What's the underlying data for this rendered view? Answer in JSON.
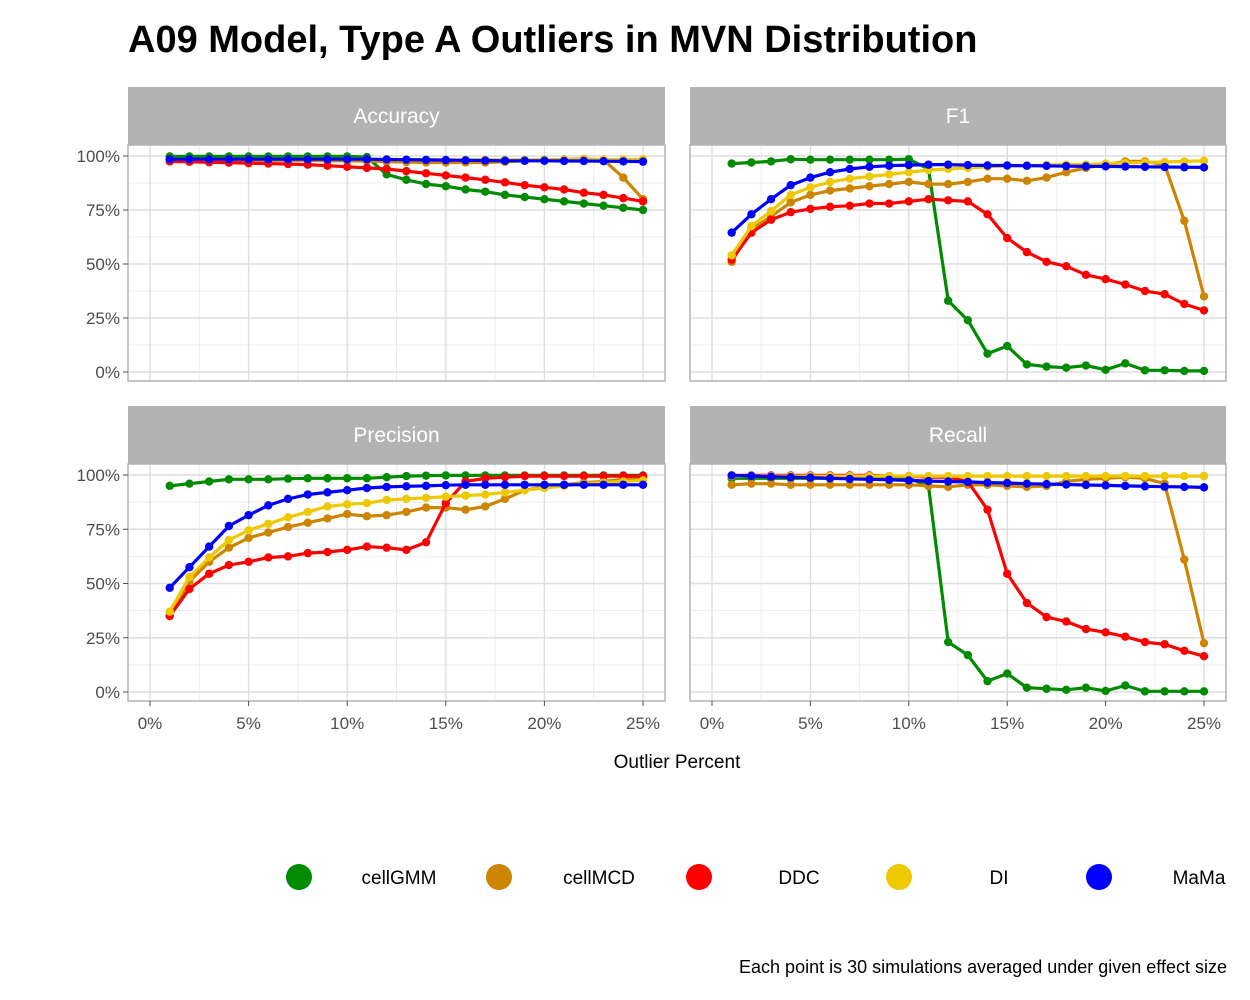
{
  "chart_data": {
    "type": "line",
    "title": "A09 Model, Type A Outliers in MVN Distribution",
    "xlabel": "Outlier Percent",
    "ylabel": "",
    "caption": "Each point is 30 simulations averaged under given effect size",
    "xlim": [
      0,
      25
    ],
    "ylim": [
      0,
      100
    ],
    "x_ticks": [
      "0%",
      "5%",
      "10%",
      "15%",
      "20%",
      "25%"
    ],
    "y_ticks": [
      "0%",
      "25%",
      "50%",
      "75%",
      "100%"
    ],
    "x": [
      1,
      2,
      3,
      4,
      5,
      6,
      7,
      8,
      9,
      10,
      11,
      12,
      13,
      14,
      15,
      16,
      17,
      18,
      19,
      20,
      21,
      22,
      23,
      24,
      25
    ],
    "legend": [
      {
        "name": "cellGMM",
        "color": "#008B00"
      },
      {
        "name": "cellMCD",
        "color": "#CD8500"
      },
      {
        "name": "DDC",
        "color": "#FF0000"
      },
      {
        "name": "DI",
        "color": "#EEC900"
      },
      {
        "name": "MaMa",
        "color": "#0000FF"
      }
    ],
    "panels": [
      {
        "label": "Accuracy",
        "series": [
          {
            "name": "cellGMM",
            "values": [
              99.8,
              99.8,
              99.8,
              99.8,
              99.8,
              99.8,
              99.8,
              99.8,
              99.8,
              99.8,
              99.5,
              91.5,
              89,
              87,
              86,
              84.5,
              83.5,
              82,
              81,
              80,
              79,
              78,
              77,
              76,
              75
            ]
          },
          {
            "name": "cellMCD",
            "values": [
              98,
              98,
              98,
              98,
              98,
              98,
              98,
              98,
              97.8,
              97.8,
              97.6,
              97.4,
              97.2,
              97,
              97,
              97,
              97,
              97.3,
              97.8,
              98.2,
              98.4,
              98.6,
              98.2,
              90,
              80
            ]
          },
          {
            "name": "DDC",
            "values": [
              97.5,
              97.3,
              97.1,
              96.9,
              96.7,
              96.5,
              96.3,
              96,
              95.5,
              95,
              94.5,
              94,
              93,
              92,
              91,
              90,
              89,
              87.8,
              86.5,
              85.5,
              84.5,
              83,
              82,
              80.5,
              79
            ]
          },
          {
            "name": "DI",
            "values": [
              98.5,
              98.5,
              98.5,
              98.5,
              98.5,
              98.5,
              98.5,
              98.5,
              98.5,
              98.5,
              98.5,
              98.4,
              98.3,
              98.2,
              98.2,
              98.2,
              98.2,
              98.2,
              98.2,
              98.3,
              98.3,
              98.4,
              98.4,
              98.4,
              98.5
            ]
          },
          {
            "name": "MaMa",
            "values": [
              98.5,
              98.5,
              98.5,
              98.5,
              98.5,
              98.5,
              98.5,
              98.5,
              98.5,
              98.5,
              98.5,
              98.4,
              98.3,
              98.2,
              98.1,
              98,
              97.9,
              97.8,
              97.8,
              97.8,
              97.7,
              97.7,
              97.6,
              97.5,
              97.4
            ]
          }
        ]
      },
      {
        "label": "F1",
        "series": [
          {
            "name": "cellGMM",
            "values": [
              96.5,
              97,
              97.5,
              98.5,
              98.3,
              98.3,
              98.3,
              98.3,
              98.3,
              98.5,
              94,
              33,
              24,
              8.5,
              12,
              3.5,
              2.5,
              2,
              3,
              1,
              4,
              0.8,
              0.8,
              0.5,
              0.5
            ]
          },
          {
            "name": "cellMCD",
            "values": [
              51,
              66,
              72,
              78.5,
              82,
              84,
              85,
              86,
              87,
              88,
              87,
              87,
              88,
              89.5,
              89.5,
              88.5,
              90,
              92.5,
              94.5,
              96,
              97.5,
              97.5,
              96,
              70,
              35
            ]
          },
          {
            "name": "DDC",
            "values": [
              52,
              64.5,
              70.5,
              74,
              75.5,
              76.5,
              77,
              78,
              78,
              79,
              80,
              79.5,
              79,
              73,
              62,
              55.5,
              51,
              49,
              45,
              43,
              40.5,
              37.5,
              36,
              31.5,
              28.5
            ]
          },
          {
            "name": "DI",
            "values": [
              54,
              67.5,
              74.5,
              82,
              85.5,
              88,
              89.5,
              90.5,
              91.5,
              92.5,
              93.5,
              94,
              94.5,
              95,
              95.5,
              95.5,
              95.8,
              96,
              96,
              96.5,
              96.8,
              97,
              97.2,
              97.5,
              97.8
            ]
          },
          {
            "name": "MaMa",
            "values": [
              64.5,
              73,
              80,
              86.5,
              90,
              92.5,
              94,
              95,
              95.5,
              95.8,
              96,
              96,
              95.8,
              95.6,
              95.6,
              95.5,
              95.4,
              95.3,
              95.2,
              95.2,
              95.1,
              95,
              94.9,
              94.8,
              94.7
            ]
          }
        ]
      },
      {
        "label": "Precision",
        "series": [
          {
            "name": "cellGMM",
            "values": [
              95,
              96,
              97,
              98,
              98,
              98,
              98.3,
              98.5,
              98.5,
              98.5,
              98.5,
              99,
              99.5,
              99.7,
              99.8,
              99.8,
              99.8,
              99.8,
              99.8,
              99.8,
              99.8,
              99.8,
              99.8,
              99.8,
              99.8
            ]
          },
          {
            "name": "cellMCD",
            "values": [
              35,
              51,
              60,
              66.5,
              71,
              73.5,
              76,
              78,
              80,
              82,
              81,
              81.5,
              83,
              85,
              85,
              84,
              85.5,
              89,
              93,
              94.5,
              95.5,
              96.5,
              97,
              98,
              99
            ]
          },
          {
            "name": "DDC",
            "values": [
              35,
              47.5,
              54.5,
              58.5,
              60,
              62,
              62.5,
              64,
              64.5,
              65.5,
              67,
              66.5,
              65.5,
              69,
              87,
              97,
              98.5,
              99,
              99.5,
              99.5,
              99.5,
              99.5,
              99.5,
              99.5,
              99.5
            ]
          },
          {
            "name": "DI",
            "values": [
              37,
              53,
              62,
              70,
              74.5,
              77.5,
              80.5,
              83,
              85.5,
              86.5,
              87,
              88.5,
              89,
              89.5,
              90,
              90.5,
              91,
              92,
              93,
              94,
              95,
              96,
              96.5,
              97,
              97.5
            ]
          },
          {
            "name": "MaMa",
            "values": [
              48,
              57.5,
              67,
              76.5,
              81.5,
              86,
              89,
              91,
              92,
              93,
              94,
              94.5,
              94.8,
              95,
              95.3,
              95.5,
              95.5,
              95.5,
              95.5,
              95.5,
              95.5,
              95.5,
              95.5,
              95.5,
              95.5
            ]
          }
        ]
      },
      {
        "label": "Recall",
        "series": [
          {
            "name": "cellGMM",
            "values": [
              98.5,
              98.5,
              98.5,
              98.5,
              98.5,
              98.5,
              98.5,
              98.5,
              98.5,
              98.5,
              95,
              23,
              17,
              5,
              8.5,
              2,
              1.5,
              1,
              2,
              0.5,
              3,
              0.3,
              0.3,
              0.3,
              0.3
            ]
          },
          {
            "name": "cellMCD",
            "values": [
              95.5,
              96,
              96,
              95.5,
              95.5,
              95.5,
              95.5,
              95.5,
              95.5,
              95.5,
              95,
              94.5,
              95.5,
              95.5,
              95,
              94.5,
              95,
              97,
              98,
              98.5,
              99,
              98.5,
              96,
              61,
              22.5
            ]
          },
          {
            "name": "DDC",
            "values": [
              99.8,
              99.8,
              99.8,
              99.8,
              99.8,
              99.8,
              99.8,
              99.8,
              99.5,
              99.5,
              99,
              99,
              97,
              84,
              54.5,
              41,
              34.5,
              32.5,
              29,
              27.5,
              25.5,
              23,
              22,
              19,
              16.5
            ]
          },
          {
            "name": "DI",
            "values": [
              99.5,
              99.5,
              99.5,
              99.5,
              99.5,
              99.5,
              99.5,
              99.5,
              99.5,
              99.5,
              99.5,
              99.5,
              99.5,
              99.5,
              99.5,
              99.5,
              99.5,
              99.5,
              99.5,
              99.5,
              99.5,
              99.5,
              99.5,
              99.5,
              99.5
            ]
          },
          {
            "name": "MaMa",
            "values": [
              99.8,
              99.5,
              99.2,
              99,
              98.8,
              98.5,
              98.2,
              98,
              97.8,
              97.5,
              97.2,
              97,
              96.8,
              96.5,
              96.3,
              96,
              95.8,
              95.6,
              95.4,
              95.2,
              95,
              94.8,
              94.6,
              94.5,
              94.3
            ]
          }
        ]
      }
    ]
  }
}
